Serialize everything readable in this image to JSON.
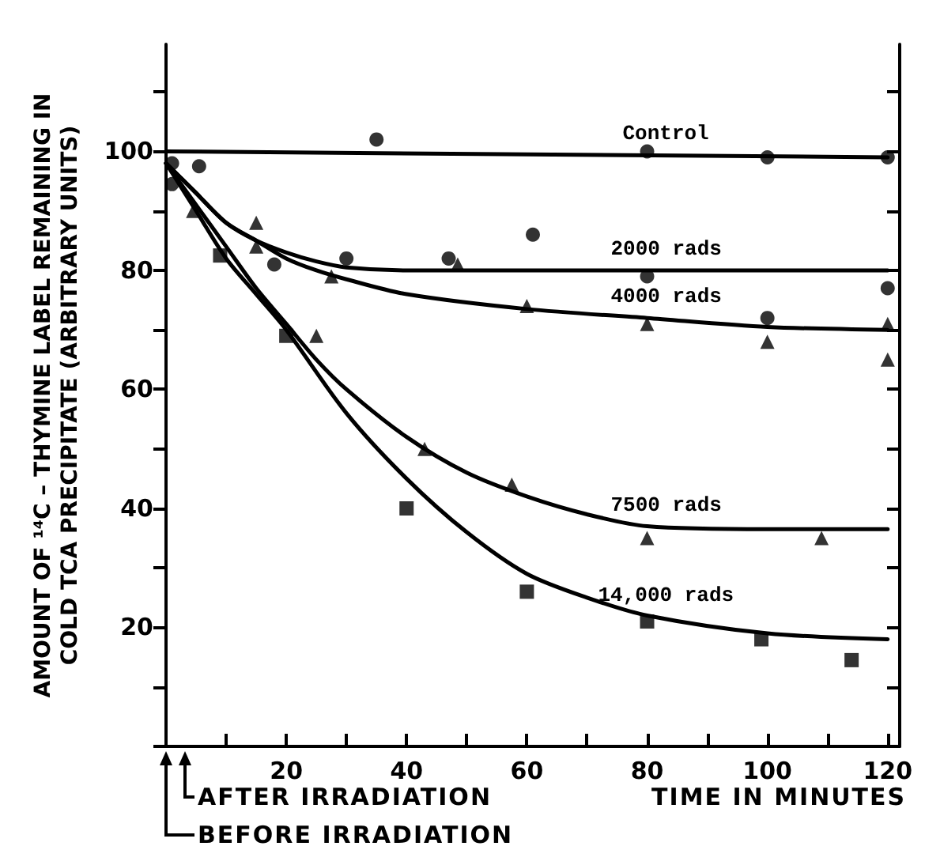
{
  "chart_data": {
    "type": "scatter",
    "xlabel": "TIME IN MINUTES",
    "ylabel": "AMOUNT OF ¹⁴C – THYMINE LABEL REMAINING IN\nCOLD TCA PRECIPITATE (ARBITRARY UNITS)",
    "xlim": [
      0,
      122
    ],
    "ylim": [
      0,
      118
    ],
    "xticks": [
      {
        "value": 0,
        "label": null
      },
      {
        "value": 10,
        "label": null
      },
      20,
      {
        "value": 30,
        "label": null
      },
      40,
      {
        "value": 50,
        "label": null
      },
      60,
      {
        "value": 70,
        "label": null
      },
      80,
      {
        "value": 90,
        "label": null
      },
      100,
      {
        "value": 110,
        "label": null
      },
      120
    ],
    "yticks": [
      {
        "value": 0,
        "label": null
      },
      {
        "value": 10,
        "label": null
      },
      20,
      {
        "value": 30,
        "label": null
      },
      40,
      {
        "value": 50,
        "label": null
      },
      60,
      {
        "value": 70,
        "label": null
      },
      80,
      {
        "value": 90,
        "label": null
      },
      100,
      {
        "value": 110,
        "label": null
      }
    ],
    "grid": false,
    "series": [
      {
        "marker": "circle",
        "color": "#000000",
        "x": [
          1,
          35,
          80,
          100,
          120
        ],
        "values": [
          98,
          102,
          100,
          99,
          99
        ]
      },
      {
        "marker": "circle",
        "color": "#000000",
        "x": [
          1,
          5.5,
          18,
          30,
          47,
          61,
          80,
          100,
          120
        ],
        "values": [
          94.5,
          97.5,
          81,
          82,
          82,
          86,
          79,
          72,
          77
        ]
      },
      {
        "marker": "triangle",
        "color": "#000000",
        "x": [
          15,
          27.5,
          48.5,
          60,
          80,
          100,
          120,
          120
        ],
        "values": [
          88,
          79,
          81,
          74,
          71,
          68,
          71,
          65
        ]
      },
      {
        "marker": "triangle",
        "color": "#000000",
        "x": [
          4.5,
          15,
          25,
          43,
          57.5,
          80,
          109
        ],
        "values": [
          90,
          84,
          69,
          50,
          44,
          35,
          35
        ]
      },
      {
        "marker": "square",
        "color": "#000000",
        "x": [
          9,
          20,
          40,
          60,
          80,
          99,
          114
        ],
        "values": [
          82.5,
          69,
          40,
          26,
          21,
          18,
          14.5
        ]
      },
      {
        "type": "line",
        "name": "Control",
        "marker": "none",
        "color": "#000000",
        "x": [
          0,
          120
        ],
        "values": [
          100,
          99
        ]
      },
      {
        "type": "line",
        "name": "2000 rads",
        "marker": "none",
        "color": "#000000",
        "x": [
          0,
          5,
          10,
          15,
          20,
          25,
          30,
          40,
          60,
          80,
          100,
          120
        ],
        "values": [
          98,
          93,
          88,
          85,
          83,
          81.5,
          80.5,
          80,
          80,
          80,
          80,
          80
        ]
      },
      {
        "type": "line",
        "name": "4000 rads",
        "marker": "none",
        "color": "#000000",
        "x": [
          0,
          5,
          10,
          15,
          20,
          25,
          30,
          40,
          60,
          80,
          100,
          120
        ],
        "values": [
          98,
          93,
          88,
          85,
          82,
          80,
          78.5,
          76,
          73.5,
          72,
          70.5,
          70
        ]
      },
      {
        "type": "line",
        "name": "7500 rads",
        "marker": "none",
        "color": "#000000",
        "x": [
          0,
          5,
          10,
          15,
          20,
          25,
          30,
          40,
          50,
          60,
          70,
          80,
          100,
          120
        ],
        "values": [
          98,
          91,
          84,
          77,
          71,
          65,
          60,
          52,
          46,
          42,
          39,
          37,
          36.5,
          36.5
        ]
      },
      {
        "type": "line",
        "name": "14,000 rads",
        "marker": "none",
        "color": "#000000",
        "x": [
          0,
          5,
          10,
          15,
          20,
          30,
          40,
          50,
          60,
          70,
          80,
          100,
          120
        ],
        "values": [
          98,
          90,
          82,
          76,
          70,
          56,
          45,
          36,
          29,
          25,
          22,
          19,
          18
        ]
      }
    ],
    "annotations": [
      "AFTER IRRADIATION",
      "BEFORE IRRADIATION"
    ]
  }
}
